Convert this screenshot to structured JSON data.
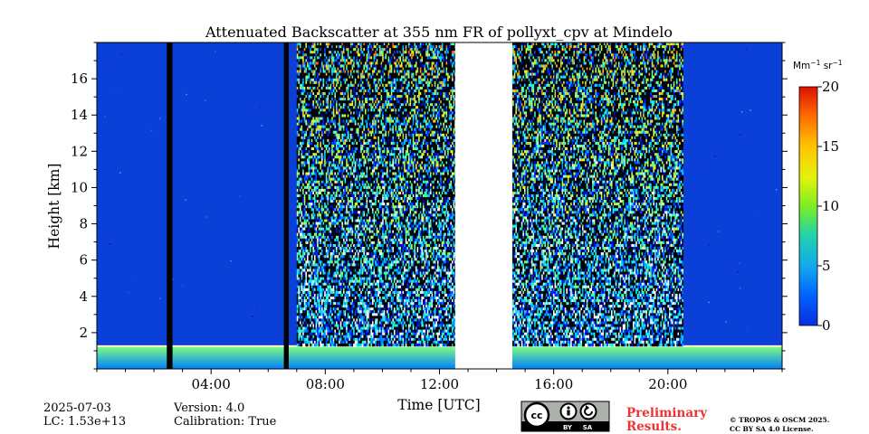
{
  "chart_data": {
    "type": "heatmap",
    "title": "Attenuated Backscatter at 355 nm FR of pollyxt_cpv at Mindelo",
    "xlabel": "Time [UTC]",
    "ylabel": "Height [km]",
    "xlim_hours": [
      0,
      24
    ],
    "ylim_km": [
      0,
      18
    ],
    "x_ticks": [
      {
        "hour": 4,
        "label": "04:00"
      },
      {
        "hour": 8,
        "label": "08:00"
      },
      {
        "hour": 12,
        "label": "12:00"
      },
      {
        "hour": 16,
        "label": "16:00"
      },
      {
        "hour": 20,
        "label": "20:00"
      }
    ],
    "y_ticks": [
      {
        "km": 2,
        "label": "2"
      },
      {
        "km": 4,
        "label": "4"
      },
      {
        "km": 6,
        "label": "6"
      },
      {
        "km": 8,
        "label": "8"
      },
      {
        "km": 10,
        "label": "10"
      },
      {
        "km": 12,
        "label": "12"
      },
      {
        "km": 14,
        "label": "14"
      },
      {
        "km": 16,
        "label": "16"
      }
    ],
    "colorbar": {
      "unit_label": "Mm",
      "unit_exp1": "−1",
      "unit_sr": " sr",
      "unit_exp2": "−1",
      "range": [
        0,
        20
      ],
      "ticks": [
        {
          "value": 0,
          "label": "0"
        },
        {
          "value": 5,
          "label": "5"
        },
        {
          "value": 10,
          "label": "10"
        },
        {
          "value": 15,
          "label": "15"
        },
        {
          "value": 20,
          "label": "20"
        }
      ],
      "colormap": "jet"
    },
    "features": {
      "no_data_gap_hours": [
        12.55,
        14.55
      ],
      "noisy_daytime_hours": [
        [
          7.0,
          12.55
        ],
        [
          14.55,
          20.5
        ]
      ],
      "aerosol_layer_top_km": 1.25,
      "aerosol_layer_base_value": 5,
      "aerosol_layer_top_value": 10,
      "clean_air_value": 0.3,
      "black_bars_hours": [
        [
          2.45,
          2.65
        ],
        [
          6.55,
          6.72
        ]
      ]
    }
  },
  "footer": {
    "date": "2025-07-03",
    "lc": "LC: 1.53e+13",
    "version": "Version: 4.0",
    "calibration": "Calibration: True",
    "preliminary_line1": "Preliminary",
    "preliminary_line2": "Results.",
    "copyright_line1": "© TROPOS & OSCM 2025.",
    "copyright_line2": "CC BY SA 4.0 License.",
    "license_badge": {
      "cc": "cc",
      "by": "BY",
      "sa": "SA"
    }
  },
  "colors": {
    "accent_red": "#ee3333",
    "background_blue": "#0a3fd8"
  }
}
